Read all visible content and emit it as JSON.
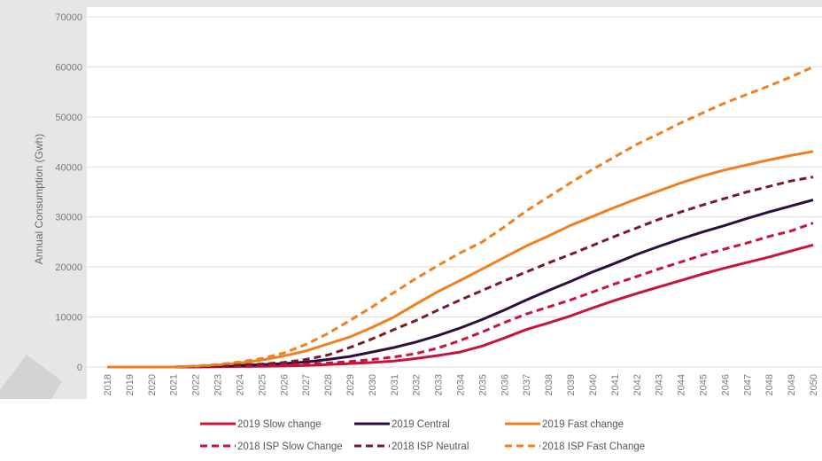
{
  "chart_data": {
    "type": "line",
    "title": "",
    "xlabel": "",
    "ylabel": "Annual Consumption (Gwh)",
    "x": [
      "2018",
      "2019",
      "2020",
      "2021",
      "2022",
      "2023",
      "2024",
      "2025",
      "2026",
      "2027",
      "2028",
      "2029",
      "2030",
      "2031",
      "2032",
      "2033",
      "2034",
      "2035",
      "2036",
      "2037",
      "2038",
      "2039",
      "2040",
      "2041",
      "2042",
      "2043",
      "2044",
      "2045",
      "2046",
      "2047",
      "2048",
      "2049",
      "2050"
    ],
    "ylim": [
      0,
      70000
    ],
    "yticks": [
      "0",
      "10000",
      "20000",
      "30000",
      "40000",
      "50000",
      "60000",
      "70000"
    ],
    "grid": "horizontal",
    "legend_position": "bottom",
    "series": [
      {
        "name": "2019 Slow change",
        "color": "#c8143c",
        "dash": "solid",
        "values": [
          0,
          0,
          0,
          0,
          0,
          50,
          100,
          150,
          200,
          300,
          500,
          700,
          900,
          1200,
          1700,
          2300,
          3000,
          4200,
          5800,
          7500,
          8800,
          10200,
          11800,
          13300,
          14700,
          16000,
          17300,
          18600,
          19800,
          20900,
          22000,
          23200,
          24400
        ]
      },
      {
        "name": "2019 Central",
        "color": "#2d0e3e",
        "dash": "solid",
        "values": [
          0,
          0,
          0,
          0,
          100,
          200,
          300,
          500,
          700,
          1000,
          1500,
          2100,
          3000,
          3900,
          5000,
          6300,
          7800,
          9500,
          11400,
          13400,
          15300,
          17100,
          19000,
          20700,
          22500,
          24100,
          25600,
          27000,
          28300,
          29700,
          31000,
          32200,
          33400
        ]
      },
      {
        "name": "2019 Fast change",
        "color": "#f07f20",
        "dash": "solid",
        "values": [
          0,
          0,
          0,
          0,
          150,
          400,
          800,
          1400,
          2200,
          3200,
          4600,
          6000,
          7900,
          10000,
          12600,
          15100,
          17300,
          19600,
          21900,
          24200,
          26200,
          28300,
          30100,
          31900,
          33600,
          35200,
          36800,
          38200,
          39400,
          40400,
          41400,
          42300,
          43100
        ]
      },
      {
        "name": "2018 ISP Slow Change",
        "color": "#c8143c",
        "dash": "dashed",
        "values": [
          0,
          0,
          0,
          0,
          50,
          100,
          200,
          300,
          400,
          600,
          800,
          1100,
          1500,
          2000,
          2700,
          3800,
          5300,
          7000,
          8900,
          10600,
          12000,
          13400,
          15000,
          16600,
          18100,
          19600,
          21000,
          22400,
          23600,
          24800,
          26100,
          27200,
          28800
        ]
      },
      {
        "name": "2018 ISP Neutral",
        "color": "#7a1a28",
        "dash": "dashed",
        "values": [
          0,
          0,
          0,
          0,
          100,
          200,
          400,
          600,
          900,
          1500,
          2400,
          3900,
          5600,
          7500,
          9300,
          11400,
          13400,
          15300,
          17200,
          19000,
          20800,
          22500,
          24300,
          26100,
          27800,
          29500,
          31000,
          32400,
          33700,
          35000,
          36100,
          37200,
          38000
        ]
      },
      {
        "name": "2018 ISP Fast Change",
        "color": "#f07f20",
        "dash": "dashed",
        "values": [
          0,
          0,
          0,
          0,
          200,
          500,
          1000,
          1700,
          2800,
          4500,
          6700,
          9300,
          12000,
          14900,
          17700,
          20300,
          22800,
          25000,
          28000,
          31200,
          34000,
          36800,
          39500,
          42000,
          44500,
          46600,
          48800,
          50800,
          52800,
          54500,
          56200,
          58000,
          60000
        ]
      }
    ]
  }
}
